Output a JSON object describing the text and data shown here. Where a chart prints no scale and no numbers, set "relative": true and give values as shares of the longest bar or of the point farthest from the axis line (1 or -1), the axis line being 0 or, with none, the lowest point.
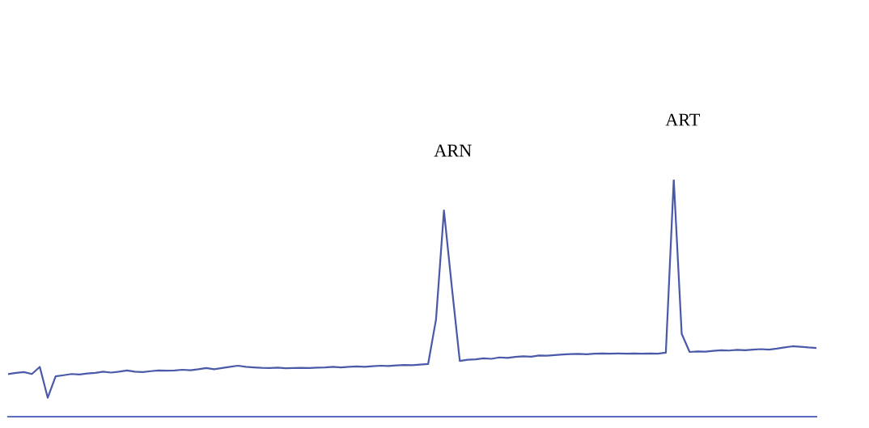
{
  "chart_data": {
    "type": "line",
    "relative": true,
    "tick_labels": false,
    "marker": "none",
    "line_style": "solid",
    "categories": [
      null,
      null,
      null,
      null,
      null,
      null,
      null,
      null,
      null,
      null,
      null,
      null,
      null,
      null,
      null,
      null,
      null,
      null,
      null,
      null,
      null,
      null,
      null,
      null,
      null,
      null,
      null,
      null,
      null,
      null,
      null,
      null,
      null,
      null,
      null,
      null,
      null,
      null,
      null,
      null,
      null,
      null,
      null,
      null,
      null,
      null,
      null,
      null,
      null,
      null,
      null,
      null,
      null,
      null,
      null,
      null,
      null,
      null,
      null,
      null,
      null,
      null,
      null,
      null,
      null,
      null,
      null,
      null,
      null,
      null,
      null,
      null,
      null,
      null,
      null,
      null,
      null,
      null,
      null,
      null,
      null,
      null,
      null,
      null,
      null,
      null,
      null,
      null,
      null,
      null,
      null,
      null,
      null,
      null,
      null,
      null,
      null,
      null,
      null,
      null,
      null,
      null,
      null
    ],
    "series": [
      {
        "color": "#4a5aa8",
        "values": [
          0.18,
          0.185,
          0.188,
          0.18,
          0.21,
          0.08,
          0.17,
          0.175,
          0.18,
          0.178,
          0.182,
          0.185,
          0.19,
          0.186,
          0.19,
          0.195,
          0.19,
          0.188,
          0.192,
          0.195,
          0.194,
          0.195,
          0.198,
          0.196,
          0.2,
          0.205,
          0.2,
          0.205,
          0.21,
          0.215,
          0.21,
          0.208,
          0.206,
          0.205,
          0.207,
          0.204,
          0.205,
          0.206,
          0.205,
          0.207,
          0.208,
          0.21,
          0.208,
          0.21,
          0.212,
          0.21,
          0.213,
          0.215,
          0.214,
          0.216,
          0.218,
          0.217,
          0.22,
          0.222,
          0.41,
          0.87,
          0.546,
          0.235,
          0.24,
          0.242,
          0.246,
          0.244,
          0.25,
          0.248,
          0.252,
          0.255,
          0.253,
          0.258,
          0.257,
          0.26,
          0.262,
          0.264,
          0.265,
          0.263,
          0.266,
          0.267,
          0.266,
          0.267,
          0.266,
          0.267,
          0.266,
          0.267,
          0.266,
          0.27,
          1.0,
          0.35,
          0.273,
          0.275,
          0.274,
          0.278,
          0.28,
          0.279,
          0.282,
          0.28,
          0.283,
          0.285,
          0.283,
          0.287,
          0.292,
          0.297,
          0.295,
          0.292,
          0.29
        ]
      }
    ],
    "annotations": [
      "ARN",
      "ART"
    ]
  }
}
